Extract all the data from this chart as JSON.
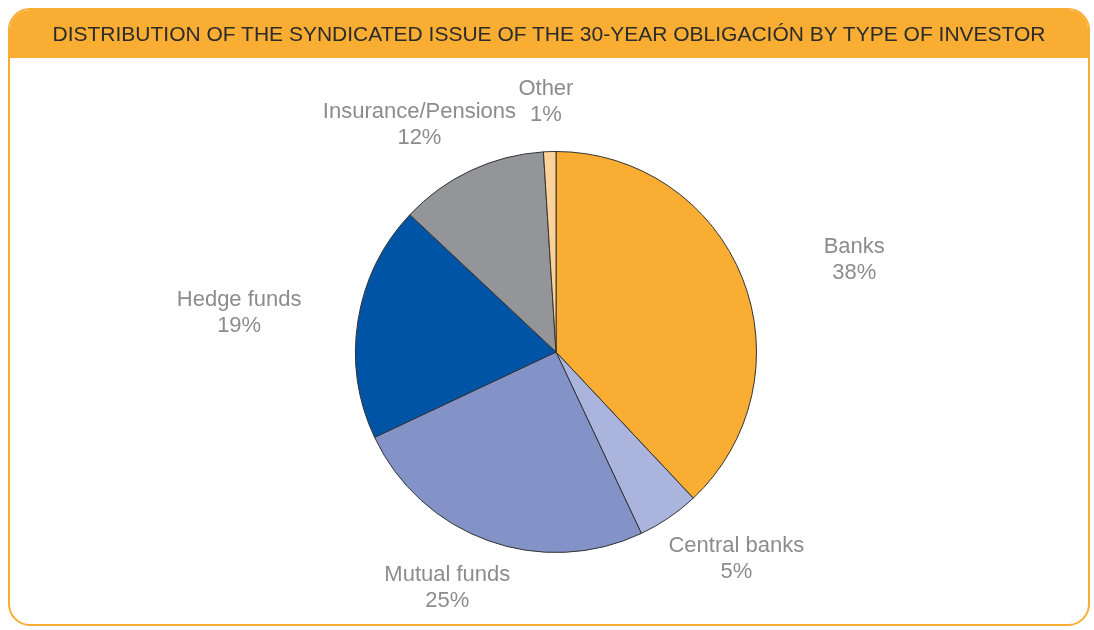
{
  "chart_data": {
    "type": "pie",
    "title": "DISTRIBUTION OF THE SYNDICATED ISSUE OF THE 30-YEAR OBLIGACIÓN BY TYPE OF INVESTOR",
    "categories": [
      "Banks",
      "Central banks",
      "Mutual funds",
      "Hedge funds",
      "Insurance/Pensions",
      "Other"
    ],
    "values": [
      38,
      5,
      25,
      19,
      12,
      1
    ],
    "value_labels": [
      "38%",
      "5%",
      "25%",
      "19%",
      "12%",
      "1%"
    ],
    "colors": [
      "#f9ad32",
      "#aab4dc",
      "#8393c8",
      "#0054a6",
      "#939598",
      "#fdd39a"
    ],
    "legend": false
  }
}
